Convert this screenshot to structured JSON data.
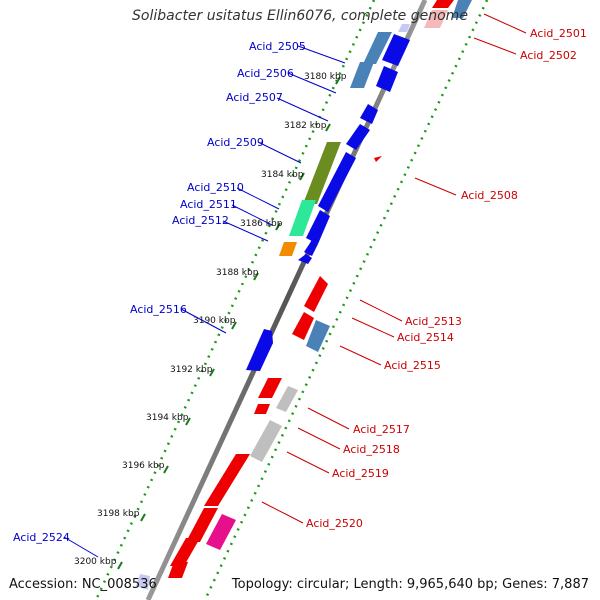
{
  "title": "Solibacter usitatus Ellin6076, complete genome",
  "footer": {
    "accession": "Accession: NC_008536",
    "topology": "Topology: circular; Length: 9,965,640 bp; Genes: 7,887"
  },
  "ticks": [
    "3180 kbp",
    "3182 kbp",
    "3184 kbp",
    "3186 kbp",
    "3188 kbp",
    "3190 kbp",
    "3192 kbp",
    "3194 kbp",
    "3196 kbp",
    "3198 kbp",
    "3200 kbp"
  ],
  "left_labels": [
    "Acid_2505",
    "Acid_2506",
    "Acid_2507",
    "Acid_2509",
    "Acid_2510",
    "Acid_2511",
    "Acid_2512",
    "Acid_2516",
    "Acid_2524"
  ],
  "right_labels": [
    "Acid_2501",
    "Acid_2502",
    "Acid_2508",
    "Acid_2513",
    "Acid_2514",
    "Acid_2515",
    "Acid_2517",
    "Acid_2518",
    "Acid_2519",
    "Acid_2520"
  ],
  "colors": {
    "blue": "#0a0ae6",
    "steel": "#4a82b8",
    "olive": "#6b8c1e",
    "green": "#2ee89a",
    "orange": "#f08c00",
    "red": "#ee0000",
    "gray": "#bfbfbf",
    "magenta": "#e6108c",
    "pink": "#f6b8b8",
    "lavender": "#c8c8f5",
    "backbone": "#666666",
    "dots": "#1a9a1a"
  }
}
